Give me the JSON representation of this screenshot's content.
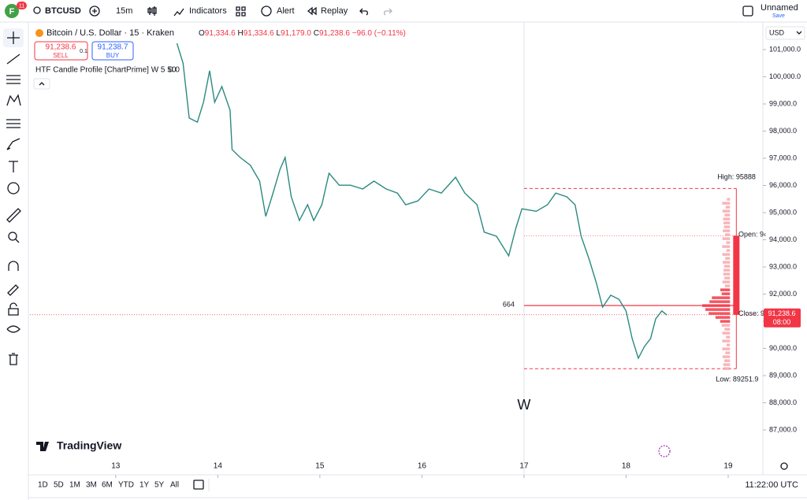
{
  "toolbar": {
    "avatar": "F",
    "badge": "11",
    "symbol": "BTCUSD",
    "interval": "15m",
    "indicators": "Indicators",
    "alert": "Alert",
    "replay": "Replay",
    "layout_name": "Unnamed",
    "save": "Save"
  },
  "legend": {
    "title": "Bitcoin / U.S. Dollar · 15 · Kraken",
    "ohlc": [
      "O",
      "91,334.6",
      "H",
      "91,334.6",
      "L",
      "91,179.0",
      "C",
      "91,238.6",
      "−96.0 (−0.11%)"
    ],
    "sell_price": "91,238.6",
    "sell": "SELL",
    "spread": "0.1",
    "buy_price": "91,238.7",
    "buy": "BUY",
    "indicator": "HTF Candle Profile [ChartPrime] W 5 50",
    "indicator_value": "0.0"
  },
  "currency": "USD",
  "chart_data": {
    "type": "line",
    "color": "#2a8a80",
    "x": [
      13.6,
      13.66,
      13.72,
      13.8,
      13.86,
      13.92,
      13.97,
      14.04,
      14.12,
      14.14,
      14.22,
      14.32,
      14.41,
      14.47,
      14.53,
      14.61,
      14.66,
      14.72,
      14.8,
      14.88,
      14.94,
      15.02,
      15.09,
      15.19,
      15.3,
      15.42,
      15.53,
      15.65,
      15.76,
      15.84,
      15.96,
      16.07,
      16.19,
      16.33,
      16.42,
      16.54,
      16.61,
      16.73,
      16.85,
      16.92,
      16.98,
      17.12,
      17.23,
      17.31,
      17.42,
      17.5,
      17.56,
      17.64,
      17.71,
      17.77,
      17.85,
      17.93,
      18.0,
      18.06,
      18.12,
      18.18,
      18.24,
      18.29,
      18.35,
      18.4
    ],
    "values": [
      101230,
      100500,
      98480,
      98330,
      99060,
      100220,
      99060,
      99640,
      98770,
      97320,
      97030,
      96740,
      96160,
      94860,
      95580,
      96590,
      97030,
      95580,
      94710,
      95290,
      94710,
      95290,
      96450,
      96010,
      96010,
      95870,
      96160,
      95870,
      95720,
      95290,
      95430,
      95870,
      95720,
      96300,
      95720,
      95290,
      94280,
      94130,
      93410,
      94420,
      95140,
      95050,
      95290,
      95720,
      95580,
      95290,
      94130,
      93260,
      92390,
      91520,
      91960,
      91810,
      91380,
      90360,
      89640,
      90070,
      90360,
      91090,
      91380,
      91230
    ],
    "xlim": [
      12.16,
      19.34
    ],
    "xticks": [
      13,
      14,
      15,
      16,
      17,
      18,
      19
    ],
    "ylim": [
      86000,
      102000
    ],
    "yticks": [
      {
        "value": 101000,
        "label": "101,000.0"
      },
      {
        "value": 100000,
        "label": "100,000.0"
      },
      {
        "value": 99000,
        "label": "99,000.0"
      },
      {
        "value": 98000,
        "label": "98,000.0"
      },
      {
        "value": 97000,
        "label": "97,000.0"
      },
      {
        "value": 96000,
        "label": "96,000.0"
      },
      {
        "value": 95000,
        "label": "95,000.0"
      },
      {
        "value": 94000,
        "label": "94,000.0"
      },
      {
        "value": 93000,
        "label": "93,000.0"
      },
      {
        "value": 92000,
        "label": "92,000.0"
      },
      {
        "value": 91000,
        "label": "91,000.0"
      },
      {
        "value": 90000,
        "label": "90,000.0"
      },
      {
        "value": 89000,
        "label": "89,000.0"
      },
      {
        "value": 88000,
        "label": "88,000.0"
      },
      {
        "value": 87000,
        "label": "87,000.0"
      }
    ],
    "last_price": 91238.6,
    "last_price_label": "91,238.6",
    "countdown": "08:00",
    "high": 95888,
    "high_label": "High: 95888",
    "low": 89251.9,
    "low_label": "Low: 89251.9",
    "open_level": 94150,
    "open_label": "Open: 9‹",
    "close_label": "Close: 9",
    "poc_level": 91580,
    "poc_label": "664",
    "profile_start": 17,
    "profile_end": 19.08,
    "period_label": "W"
  },
  "logo": "TradingView",
  "ranges": [
    "1D",
    "5D",
    "1M",
    "3M",
    "6M",
    "YTD",
    "1Y",
    "5Y",
    "All"
  ],
  "clock": "11:22:00 UTC"
}
